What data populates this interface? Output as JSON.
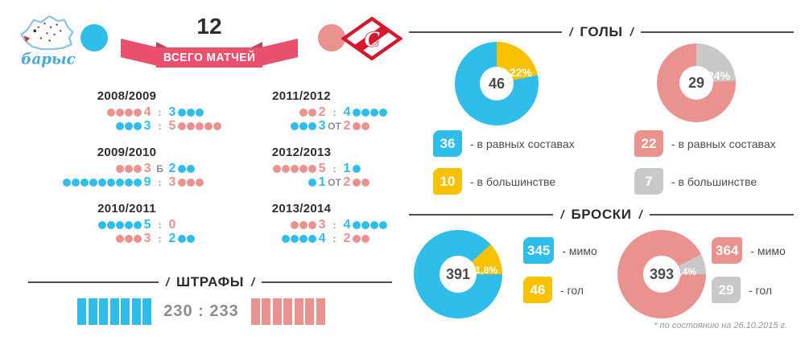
{
  "header": {
    "total_value": "12",
    "total_label": "ВСЕГО МАТЧЕЙ"
  },
  "teams": {
    "left_logo_text": "барыс",
    "right_logo_letter": "С"
  },
  "sections": {
    "goals": "ГОЛЫ",
    "shots": "БРОСКИ"
  },
  "footnote": "* по состоянию на 26.10.2015 г.",
  "colors": {
    "blue": "#2fbde9",
    "pink": "#e9928f",
    "yellow": "#f9c200",
    "gray": "#c9c9c9",
    "ribbon": "#e8506e",
    "dark_text": "#2e2e2e",
    "muted_text": "#8d8d8d"
  },
  "chart_data": [
    {
      "id": "goals-left",
      "type": "donut",
      "total": "46",
      "values": [
        36,
        10
      ],
      "pct_label": "22%",
      "slice_anchor": "top-start",
      "colors": {
        "main": "#2fbde9",
        "slice": "#f9c200"
      },
      "legend": [
        {
          "value": "36",
          "label": "- в равных составах",
          "color": "#2fbde9"
        },
        {
          "value": "10",
          "label": "- в большинстве",
          "color": "#f9c200"
        }
      ]
    },
    {
      "id": "goals-right",
      "type": "donut",
      "total": "29",
      "values": [
        22,
        7
      ],
      "pct_label": "24%",
      "slice_anchor": "top-start",
      "colors": {
        "main": "#e9928f",
        "slice": "#c9c9c9"
      },
      "legend": [
        {
          "value": "22",
          "label": "- в равных составах",
          "color": "#e9928f"
        },
        {
          "value": "7",
          "label": "- в большинстве",
          "color": "#c9c9c9"
        }
      ]
    },
    {
      "id": "shots-left",
      "type": "donut",
      "total": "391",
      "values": [
        345,
        46
      ],
      "pct_label": "11,8%",
      "slice_anchor": "end-right",
      "colors": {
        "main": "#2fbde9",
        "slice": "#f9c200"
      },
      "legend": [
        {
          "value": "345",
          "label": "- мимо",
          "color": "#2fbde9"
        },
        {
          "value": "46",
          "label": "- гол",
          "color": "#f9c200"
        }
      ]
    },
    {
      "id": "shots-right",
      "type": "donut",
      "total": "393",
      "values": [
        364,
        29
      ],
      "pct_label": "7,4%",
      "slice_anchor": "end-right",
      "colors": {
        "main": "#e9928f",
        "slice": "#c9c9c9"
      },
      "legend": [
        {
          "value": "364",
          "label": "- мимо",
          "color": "#e9928f"
        },
        {
          "value": "29",
          "label": "- гол",
          "color": "#c9c9c9"
        }
      ]
    },
    {
      "id": "seasons-dotplot",
      "type": "table",
      "seasons": [
        {
          "title": "2008/2009",
          "rows": [
            {
              "l": {
                "c": "pink",
                "n": 4
              },
              "sep": ":",
              "r": {
                "c": "blue",
                "n": 3
              }
            },
            {
              "l": {
                "c": "blue",
                "n": 3
              },
              "sep": ":",
              "r": {
                "c": "pink",
                "n": 5
              }
            }
          ]
        },
        {
          "title": "2011/2012",
          "rows": [
            {
              "l": {
                "c": "pink",
                "n": 2
              },
              "sep": ":",
              "r": {
                "c": "blue",
                "n": 4
              }
            },
            {
              "l": {
                "c": "blue",
                "n": 3
              },
              "sep": "ОТ",
              "r": {
                "c": "pink",
                "n": 2
              }
            }
          ]
        },
        {
          "title": "2009/2010",
          "rows": [
            {
              "l": {
                "c": "pink",
                "n": 3
              },
              "sep": "Б",
              "r": {
                "c": "blue",
                "n": 2
              }
            },
            {
              "l": {
                "c": "blue",
                "n": 9
              },
              "sep": ":",
              "r": {
                "c": "pink",
                "n": 3
              }
            }
          ]
        },
        {
          "title": "2012/2013",
          "rows": [
            {
              "l": {
                "c": "pink",
                "n": 5
              },
              "sep": ":",
              "r": {
                "c": "blue",
                "n": 1
              }
            },
            {
              "l": {
                "c": "blue",
                "n": 1
              },
              "sep": "ОТ",
              "r": {
                "c": "pink",
                "n": 2
              }
            }
          ]
        },
        {
          "title": "2010/2011",
          "rows": [
            {
              "l": {
                "c": "blue",
                "n": 5
              },
              "sep": ":",
              "r": {
                "c": "pink",
                "n": 0
              }
            },
            {
              "l": {
                "c": "pink",
                "n": 3
              },
              "sep": ":",
              "r": {
                "c": "blue",
                "n": 2
              }
            }
          ]
        },
        {
          "title": "2013/2014",
          "rows": [
            {
              "l": {
                "c": "pink",
                "n": 3
              },
              "sep": ":",
              "r": {
                "c": "blue",
                "n": 4
              }
            },
            {
              "l": {
                "c": "blue",
                "n": 4
              },
              "sep": ":",
              "r": {
                "c": "pink",
                "n": 2
              }
            }
          ]
        }
      ]
    },
    {
      "id": "penalties",
      "type": "bar",
      "title": "ШТРАФЫ",
      "value_text": "230 : 233",
      "values": [
        230,
        233
      ],
      "bars": [
        7,
        7
      ],
      "colors": {
        "left": "#2fbde9",
        "right": "#e9928f"
      }
    }
  ]
}
